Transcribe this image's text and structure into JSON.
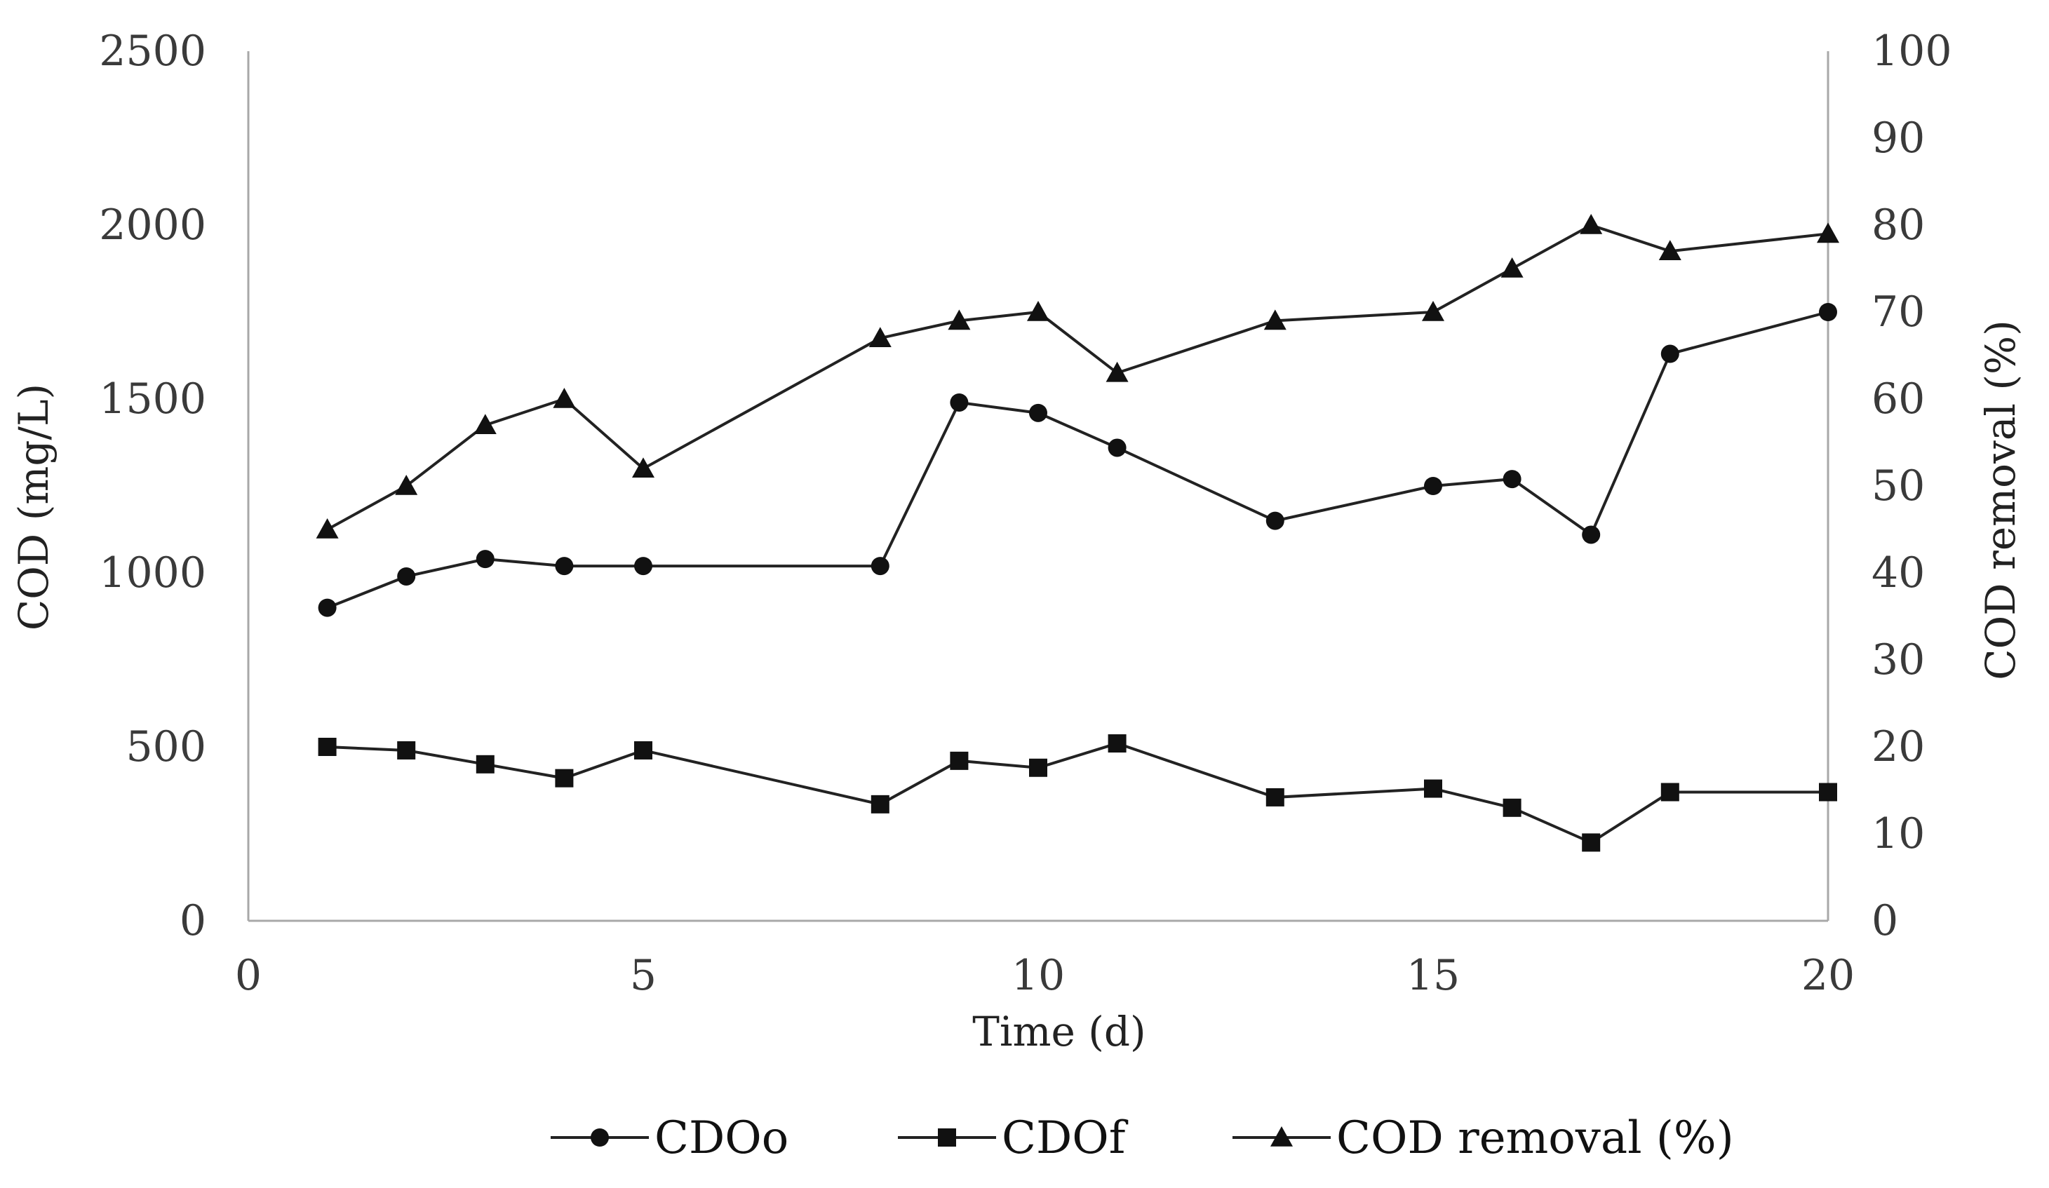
{
  "chart_data": {
    "type": "line",
    "title": "",
    "xlabel": "Time (d)",
    "ylabel_left": "COD (mg/L)",
    "ylabel_right": "COD removal (%)",
    "xlim": [
      0,
      20
    ],
    "ylim_left": [
      0,
      2500
    ],
    "ylim_right": [
      0,
      100
    ],
    "x_ticks": [
      0,
      5,
      10,
      15,
      20
    ],
    "y_left_ticks": [
      0,
      500,
      1000,
      1500,
      2000,
      2500
    ],
    "y_right_ticks": [
      0,
      10,
      20,
      30,
      40,
      50,
      60,
      70,
      80,
      90,
      100
    ],
    "grid": false,
    "legend_position": "bottom",
    "series": [
      {
        "name": "CDOo",
        "axis": "left",
        "marker": "circle",
        "x": [
          1,
          2,
          3,
          4,
          5,
          8,
          9,
          10,
          11,
          13,
          15,
          16,
          17,
          18,
          20
        ],
        "values": [
          900,
          990,
          1040,
          1020,
          1020,
          1020,
          1490,
          1460,
          1360,
          1150,
          1250,
          1270,
          1110,
          1630,
          1750
        ]
      },
      {
        "name": "CDOf",
        "axis": "left",
        "marker": "square",
        "x": [
          1,
          2,
          3,
          4,
          5,
          8,
          9,
          10,
          11,
          13,
          15,
          16,
          17,
          18,
          20
        ],
        "values": [
          500,
          490,
          450,
          410,
          490,
          335,
          460,
          440,
          510,
          355,
          380,
          325,
          225,
          370,
          370
        ]
      },
      {
        "name": "COD removal (%)",
        "axis": "right",
        "marker": "triangle",
        "x": [
          1,
          2,
          3,
          4,
          5,
          8,
          9,
          10,
          11,
          13,
          15,
          16,
          17,
          18,
          20
        ],
        "values": [
          45,
          50,
          57,
          60,
          52,
          67,
          69,
          70,
          63,
          69,
          70,
          75,
          80,
          77,
          79
        ]
      }
    ]
  }
}
